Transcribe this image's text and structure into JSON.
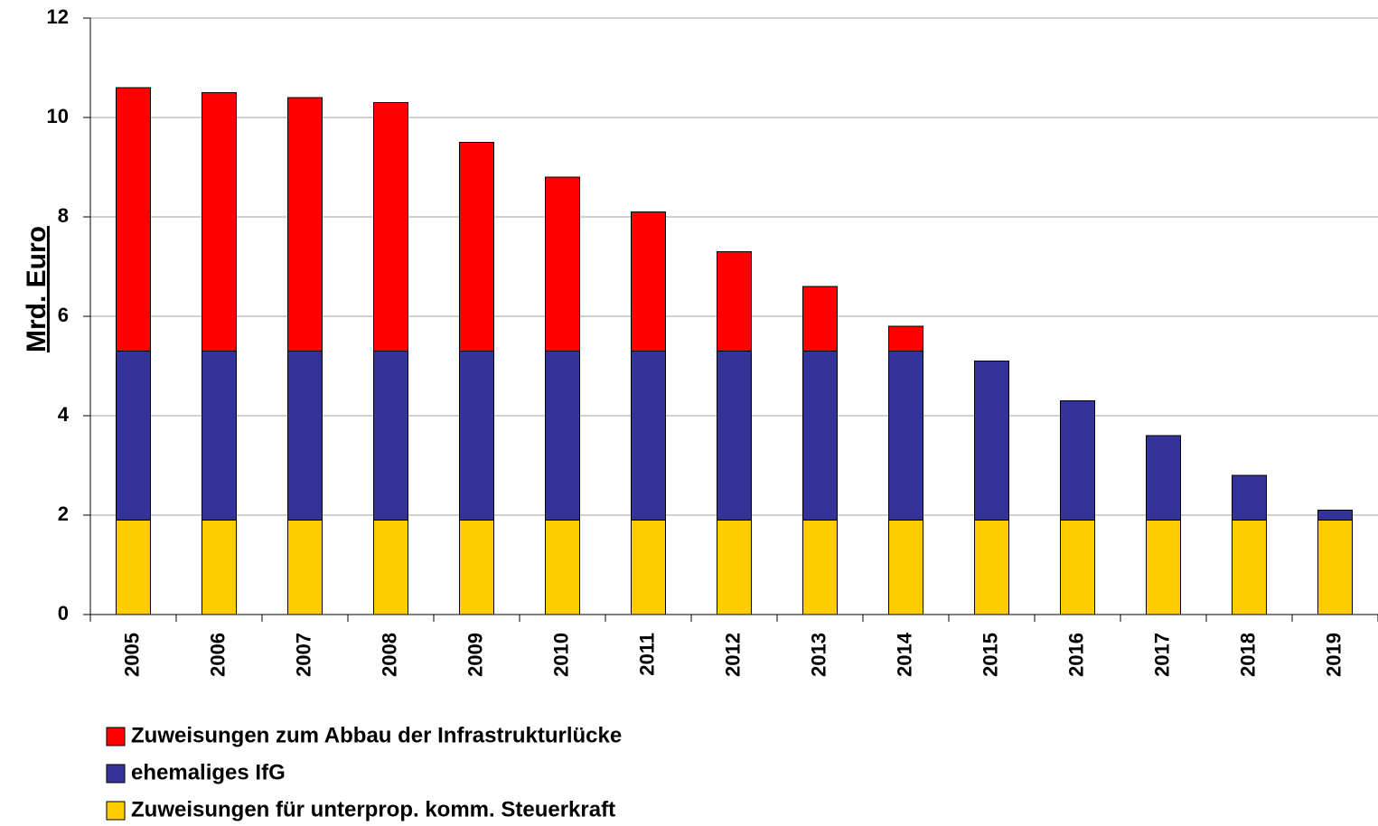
{
  "chart_data": {
    "type": "stacked_bar",
    "y_label": "Mrd. Euro",
    "categories": [
      "2005",
      "2006",
      "2007",
      "2008",
      "2009",
      "2010",
      "2011",
      "2012",
      "2013",
      "2014",
      "2015",
      "2016",
      "2017",
      "2018",
      "2019"
    ],
    "series": [
      {
        "name": "Zuweisungen zum Abbau der Infrastrukturlücke",
        "color": "#ff0000",
        "values": [
          5.3,
          5.2,
          5.1,
          5.0,
          4.2,
          3.5,
          2.8,
          2.0,
          1.3,
          0.5,
          0,
          0,
          0,
          0,
          0
        ]
      },
      {
        "name": "ehemaliges IfG",
        "color": "#333399",
        "values": [
          3.4,
          3.4,
          3.4,
          3.4,
          3.4,
          3.4,
          3.4,
          3.4,
          3.4,
          3.4,
          3.2,
          2.4,
          1.7,
          0.9,
          0.2
        ]
      },
      {
        "name": "Zuweisungen für unterprop. komm. Steuerkraft",
        "color": "#ffcc00",
        "values": [
          1.9,
          1.9,
          1.9,
          1.9,
          1.9,
          1.9,
          1.9,
          1.9,
          1.9,
          1.9,
          1.9,
          1.9,
          1.9,
          1.9,
          1.9
        ]
      }
    ],
    "ylim": [
      0,
      12
    ],
    "yticks": [
      0,
      2,
      4,
      6,
      8,
      10,
      12
    ],
    "grid": true,
    "legend": "bottom-left"
  }
}
